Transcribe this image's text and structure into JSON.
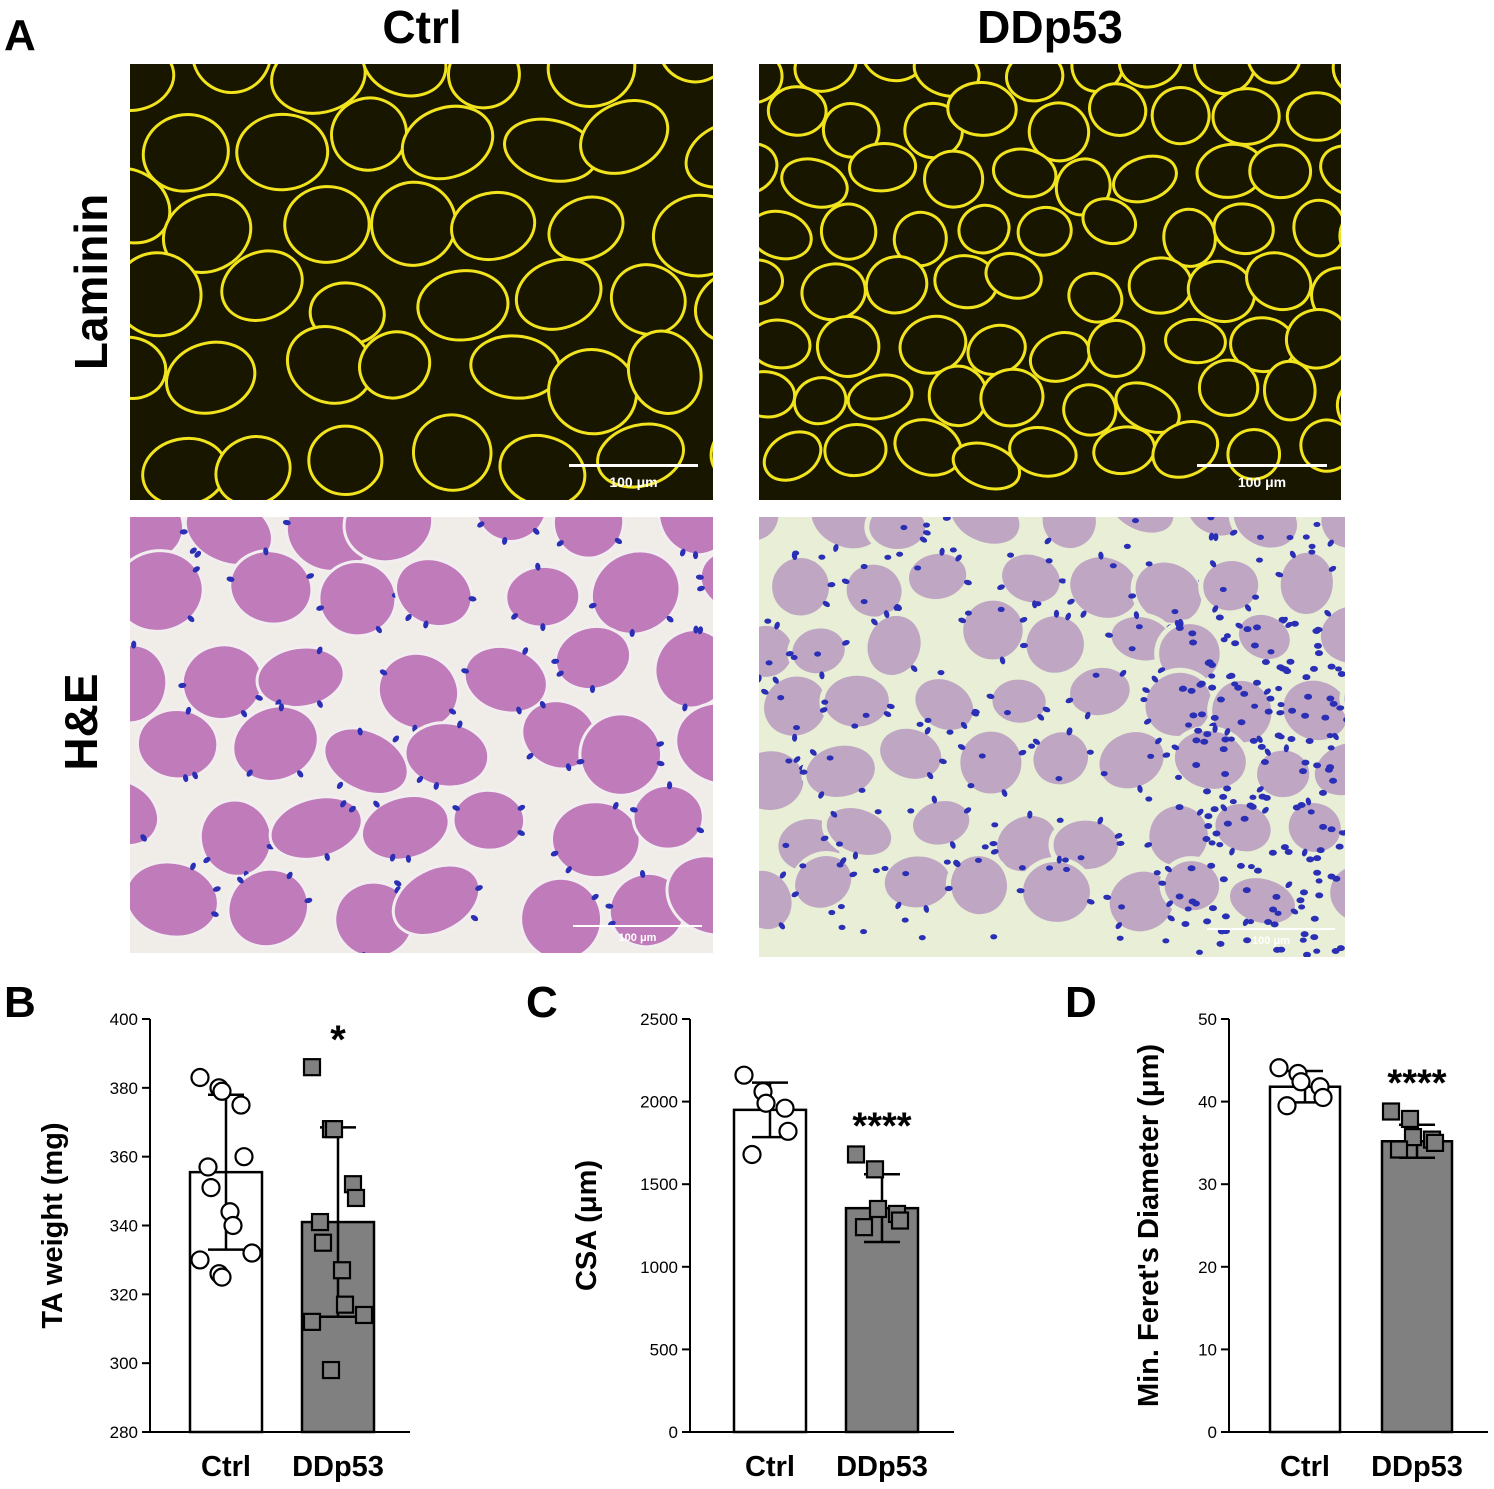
{
  "panel_a": {
    "letter": "A",
    "columns": [
      "Ctrl",
      "DDp53"
    ],
    "rows": [
      "Laminin",
      "H&E"
    ],
    "scale_label": "100 μm"
  },
  "colors": {
    "laminin_bg": "#191600",
    "laminin_signal": "#f2e41c",
    "he_ctrl_bg": "#c07cba",
    "he_ddp53_bg": "#bfa7c4",
    "nuclei": "#2a2fb5",
    "interstitial": "#e8efd6",
    "bar_ctrl": "#ffffff",
    "bar_ddp53": "#808080"
  },
  "chart_data": [
    {
      "letter": "B",
      "type": "bar",
      "categories": [
        "Ctrl",
        "DDp53"
      ],
      "ylabel": "TA weight (mg)",
      "ylim": [
        280,
        400
      ],
      "yticks": [
        280,
        300,
        320,
        340,
        360,
        380,
        400
      ],
      "means": [
        355.5,
        341
      ],
      "sd": [
        22.5,
        27.5
      ],
      "points": [
        [
          383,
          380,
          379,
          375,
          360,
          357,
          351,
          344,
          340,
          332,
          330,
          326,
          325
        ],
        [
          386,
          368,
          368,
          352,
          348,
          341,
          335,
          327,
          317,
          314,
          312,
          298
        ]
      ],
      "significance": "*"
    },
    {
      "letter": "C",
      "type": "bar",
      "categories": [
        "Ctrl",
        "DDp53"
      ],
      "ylabel": "CSA (μm)",
      "ylim": [
        0,
        2500
      ],
      "yticks": [
        0,
        500,
        1000,
        1500,
        2000,
        2500
      ],
      "means": [
        1950,
        1355
      ],
      "sd": [
        165,
        205
      ],
      "points": [
        [
          2160,
          2060,
          1990,
          1960,
          1820,
          1680
        ],
        [
          1680,
          1590,
          1350,
          1320,
          1280,
          1240
        ]
      ],
      "significance": "****"
    },
    {
      "letter": "D",
      "type": "bar",
      "categories": [
        "Ctrl",
        "DDp53"
      ],
      "ylabel": "Min. Feret's Diameter (μm)",
      "ylim": [
        0,
        50
      ],
      "yticks": [
        0,
        10,
        20,
        30,
        40,
        50
      ],
      "means": [
        41.8,
        35.2
      ],
      "sd": [
        1.9,
        2.0
      ],
      "points": [
        [
          44.1,
          43.4,
          42.4,
          41.8,
          40.5,
          39.5
        ],
        [
          38.8,
          37.9,
          35.7,
          35.4,
          35.0,
          34.2
        ]
      ],
      "significance": "****"
    }
  ]
}
